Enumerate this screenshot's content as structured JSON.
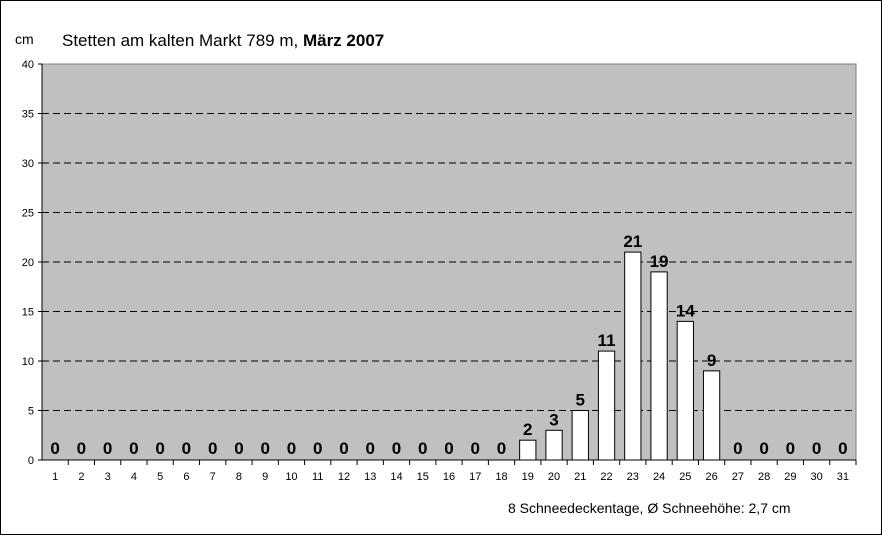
{
  "chart_data": {
    "type": "bar",
    "title_location": "Stetten am kalten Markt 789 m,",
    "title_period": "März 2007",
    "ylabel": "cm",
    "ylim": [
      0,
      40
    ],
    "yticks": [
      0,
      5,
      10,
      15,
      20,
      25,
      30,
      35,
      40
    ],
    "grid": true,
    "categories": [
      "1",
      "2",
      "3",
      "4",
      "5",
      "6",
      "7",
      "8",
      "9",
      "10",
      "11",
      "12",
      "13",
      "14",
      "15",
      "16",
      "17",
      "18",
      "19",
      "20",
      "21",
      "22",
      "23",
      "24",
      "25",
      "26",
      "27",
      "28",
      "29",
      "30",
      "31"
    ],
    "values": [
      0,
      0,
      0,
      0,
      0,
      0,
      0,
      0,
      0,
      0,
      0,
      0,
      0,
      0,
      0,
      0,
      0,
      0,
      2,
      3,
      5,
      11,
      21,
      19,
      14,
      9,
      0,
      0,
      0,
      0,
      0
    ],
    "footer": "8 Schneedeckentage,  Ø Schneehöhe:  2,7 cm",
    "colors": {
      "plot_background": "#c0c0c0",
      "bar_fill": "#ffffff",
      "bar_stroke": "#000000",
      "grid": "#000000"
    }
  }
}
